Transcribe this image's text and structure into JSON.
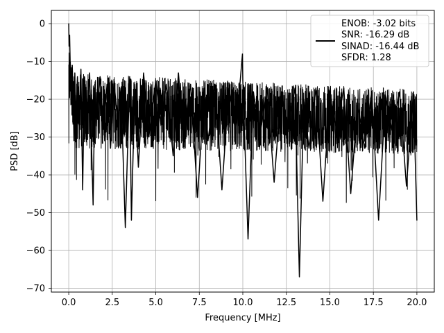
{
  "chart_data": {
    "type": "line",
    "title": "",
    "xlabel": "Frequency [MHz]",
    "ylabel": "PSD [dB]",
    "xlim": [
      -1.0,
      21.0
    ],
    "ylim": [
      -71.0,
      3.5
    ],
    "grid": true,
    "legend_position": "top-right",
    "x_ticks": [
      0.0,
      2.5,
      5.0,
      7.5,
      10.0,
      12.5,
      15.0,
      17.5,
      20.0
    ],
    "x_tick_labels": [
      "0.0",
      "2.5",
      "5.0",
      "7.5",
      "10.0",
      "12.5",
      "15.0",
      "17.5",
      "20.0"
    ],
    "y_ticks": [
      0,
      -10,
      -20,
      -30,
      -40,
      -50,
      -60,
      -70
    ],
    "y_tick_labels": [
      "0",
      "−10",
      "−20",
      "−30",
      "−40",
      "−50",
      "−60",
      "−70"
    ],
    "series": [
      {
        "legend_lines": [
          "ENOB: -3.02 bits",
          "SNR: -16.29 dB",
          "SINAD: -16.44 dB",
          "SFDR: 1.28"
        ],
        "color": "#000000",
        "x": [
          0.0,
          0.02,
          0.05,
          0.08,
          0.12,
          0.16,
          0.2,
          0.25,
          0.3,
          0.35,
          0.4,
          0.5,
          0.6,
          0.7,
          0.8,
          0.9,
          1.0,
          1.2,
          1.4,
          1.5,
          1.6,
          1.8,
          2.0,
          2.2,
          2.4,
          2.6,
          2.8,
          3.0,
          3.25,
          3.5,
          3.6,
          3.8,
          4.0,
          4.3,
          4.6,
          5.0,
          5.3,
          5.6,
          6.0,
          6.3,
          6.6,
          7.0,
          7.4,
          7.8,
          8.0,
          8.4,
          8.8,
          9.2,
          9.6,
          9.98,
          10.0,
          10.3,
          10.6,
          11.0,
          11.4,
          11.8,
          12.2,
          12.6,
          13.0,
          13.25,
          13.5,
          13.8,
          14.2,
          14.6,
          15.0,
          15.4,
          15.8,
          16.2,
          16.6,
          17.0,
          17.4,
          17.8,
          18.2,
          18.6,
          19.0,
          19.4,
          19.8,
          20.0
        ],
        "y": [
          0.0,
          -6.0,
          -3.0,
          -10.0,
          -14.0,
          -20.0,
          -11.0,
          -18.0,
          -31.0,
          -13.0,
          -25.0,
          -14.0,
          -27.0,
          -12.0,
          -44.0,
          -14.0,
          -30.0,
          -13.0,
          -48.0,
          -16.0,
          -25.0,
          -14.0,
          -28.0,
          -16.0,
          -33.0,
          -15.0,
          -26.0,
          -17.0,
          -54.0,
          -14.0,
          -52.0,
          -16.0,
          -38.0,
          -13.0,
          -30.0,
          -15.0,
          -27.0,
          -16.0,
          -35.0,
          -13.0,
          -29.0,
          -16.0,
          -46.0,
          -17.0,
          -31.0,
          -16.0,
          -44.0,
          -17.0,
          -29.0,
          -8.0,
          -15.0,
          -57.0,
          -18.0,
          -29.0,
          -17.0,
          -42.0,
          -18.0,
          -27.0,
          -17.0,
          -67.0,
          -20.0,
          -33.0,
          -17.0,
          -47.0,
          -19.0,
          -28.0,
          -17.0,
          -45.0,
          -21.0,
          -33.0,
          -18.0,
          -52.0,
          -19.0,
          -29.0,
          -18.0,
          -43.0,
          -18.0,
          -52.0
        ]
      }
    ]
  }
}
